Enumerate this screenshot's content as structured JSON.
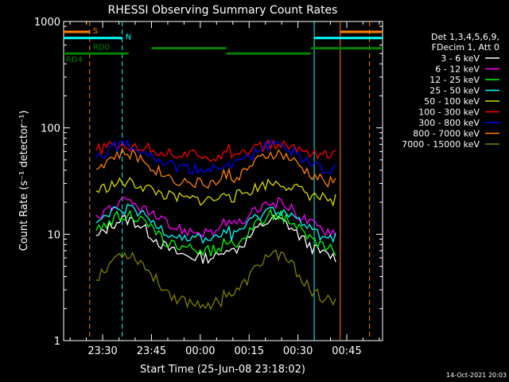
{
  "chart_data": {
    "type": "line",
    "title": "RHESSI Observing Summary Count Rates",
    "xlabel": "Start Time (25-Jun-08 23:18:02)",
    "ylabel": "Count Rate (s⁻¹ detector⁻¹)",
    "y_scale": "log",
    "ylim": [
      1,
      1000
    ],
    "xlim_minutes": [
      0,
      98
    ],
    "x_tick_labels": [
      "23:30",
      "23:45",
      "00:00",
      "00:15",
      "00:30",
      "00:45"
    ],
    "x_tick_minutes": [
      12,
      27,
      42,
      57,
      72,
      87
    ],
    "y_tick_labels": [
      "1",
      "10",
      "100",
      "1000"
    ],
    "y_tick_values": [
      1,
      10,
      100,
      1000
    ],
    "legend_header": [
      "Det 1,3,4,5,6,9,",
      "FDecim 1, Att 0"
    ],
    "footer_date": "14-Oct-2021 20:03",
    "series": [
      {
        "name": "3 - 6 keV",
        "color": "#ffffff",
        "base": 6.0,
        "amp": 2.3
      },
      {
        "name": "6 - 12 keV",
        "color": "#ff00ff",
        "base": 10.5,
        "amp": 1.9
      },
      {
        "name": "12 - 25 keV",
        "color": "#00ff00",
        "base": 7.0,
        "amp": 2.2
      },
      {
        "name": "25 - 50 keV",
        "color": "#00ffff",
        "base": 9.0,
        "amp": 1.9
      },
      {
        "name": "50 - 100 keV",
        "color": "#d8d800",
        "base": 21.0,
        "amp": 1.45
      },
      {
        "name": "100 - 300 keV",
        "color": "#ff0000",
        "base": 55.0,
        "amp": 1.25
      },
      {
        "name": "300 - 800 keV",
        "color": "#0000ff",
        "base": 40.0,
        "amp": 1.75
      },
      {
        "name": "800 - 7000 keV",
        "color": "#ff8000",
        "base": 30.0,
        "amp": 1.9
      },
      {
        "name": "7000 - 15000 keV",
        "color": "#808000",
        "base": 2.2,
        "amp": 3.0
      }
    ],
    "state_bars": [
      {
        "label": "S",
        "color": "#ff8000",
        "value": 800,
        "segments": [
          [
            0,
            8
          ],
          [
            85,
            98
          ]
        ]
      },
      {
        "label": "N",
        "color": "#00ffff",
        "value": 700,
        "segments": [
          [
            0,
            18
          ],
          [
            77,
            98
          ]
        ]
      },
      {
        "label": "RD0",
        "color": "#008000",
        "value": 560,
        "segments": [
          [
            27,
            50
          ],
          [
            76,
            98
          ]
        ]
      },
      {
        "label": "RD4",
        "color": "#008000",
        "value": 500,
        "segments": [
          [
            0,
            20
          ],
          [
            50,
            76
          ]
        ]
      }
    ],
    "vlines": [
      {
        "minute": 8,
        "color": "#ff8000",
        "style": "dash"
      },
      {
        "minute": 18,
        "color": "#00ffff",
        "style": "dash"
      },
      {
        "minute": 77,
        "color": "#00ffff",
        "style": "solid"
      },
      {
        "minute": 85,
        "color": "#ff8000",
        "style": "solid"
      },
      {
        "minute": 94,
        "color": "#ff8000",
        "style": "dash"
      }
    ]
  }
}
